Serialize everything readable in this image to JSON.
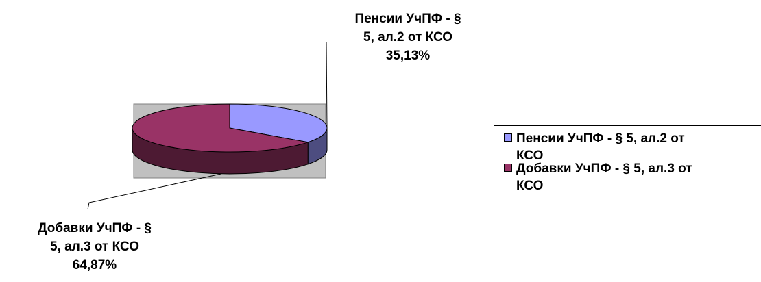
{
  "chart_data": {
    "type": "pie",
    "style": "3d",
    "title": "",
    "slices": [
      {
        "label": "Пенсии УчПФ - § 5, ал.2 от КСО",
        "callout_lines": [
          "Пенсии УчПФ - §",
          "5, ал.2 от КСО",
          "35,13%"
        ],
        "value": 35.13,
        "percent_label": "35,13%",
        "color": "#9999FF",
        "side_color": "#4D4D80"
      },
      {
        "label": "Добавки УчПФ - § 5, ал.3 от КСО",
        "callout_lines": [
          "Добавки УчПФ - §",
          "5, ал.3 от КСО",
          "64,87%"
        ],
        "value": 64.87,
        "percent_label": "64,87%",
        "color": "#993366",
        "side_color": "#4D1A33"
      }
    ],
    "legend": {
      "placement": "right",
      "items": [
        {
          "lines": [
            "Пенсии УчПФ - § 5, ал.2 от",
            "КСО"
          ],
          "color": "#9999FF"
        },
        {
          "lines": [
            "Добавки УчПФ - § 5, ал.3 от",
            "КСО"
          ],
          "color": "#993366"
        }
      ]
    },
    "plot_area_fill": "#C0C0C0"
  }
}
